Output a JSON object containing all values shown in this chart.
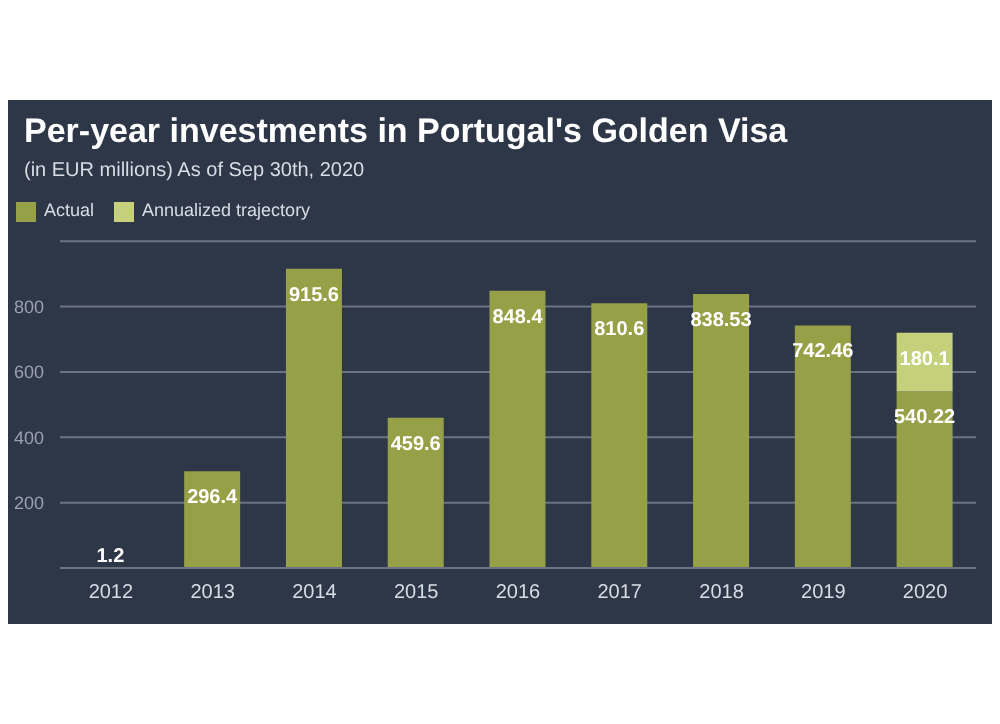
{
  "chart_data": {
    "type": "bar",
    "title": "Per-year investments in Portugal's Golden Visa",
    "subtitle": "(in EUR millions) As of Sep 30th, 2020",
    "categories": [
      "2012",
      "2013",
      "2014",
      "2015",
      "2016",
      "2017",
      "2018",
      "2019",
      "2020"
    ],
    "series": [
      {
        "name": "Actual",
        "color": "#96a046",
        "values": [
          1.2,
          296.4,
          915.6,
          459.6,
          848.4,
          810.6,
          838.53,
          742.46,
          540.22
        ]
      },
      {
        "name": "Annualized trajectory",
        "color": "#c5d17a",
        "values": [
          null,
          null,
          null,
          null,
          null,
          null,
          null,
          null,
          180.1
        ]
      }
    ],
    "stacked": true,
    "data_labels": true,
    "ylim": [
      0,
      1000
    ],
    "yticks": [
      {
        "value": 0,
        "label": null
      },
      200,
      400,
      600,
      800
    ],
    "grid": "y",
    "legend": "top left"
  }
}
